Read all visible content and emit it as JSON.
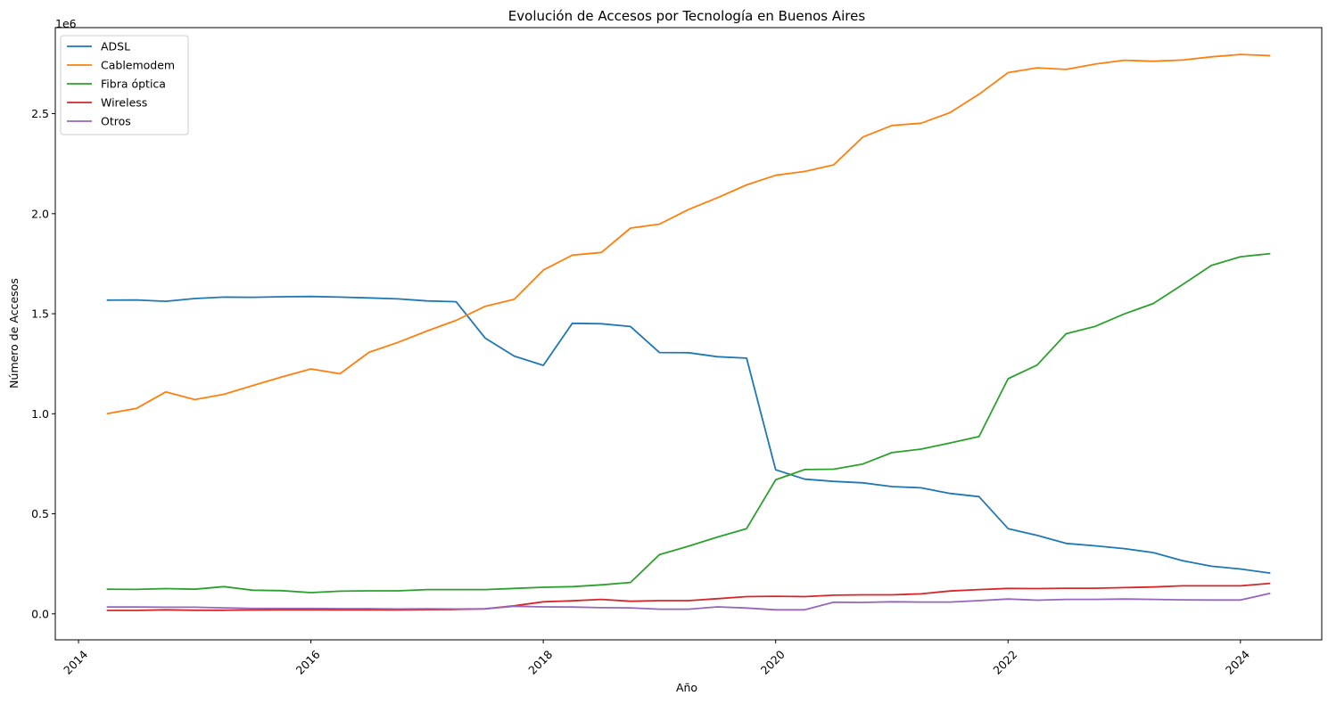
{
  "chart_data": {
    "type": "line",
    "title": "Evolución de Accesos por Tecnología en Buenos Aires",
    "xlabel": "Año",
    "ylabel": "Número de Accesos",
    "y_offset_label": "1e6",
    "xlim": [
      2013.8,
      2024.7
    ],
    "ylim": [
      -130000,
      2930000
    ],
    "x_ticks": [
      2014,
      2016,
      2018,
      2020,
      2022,
      2024
    ],
    "y_ticks": [
      0,
      500000,
      1000000,
      1500000,
      2000000,
      2500000
    ],
    "y_tick_labels": [
      "0.0",
      "0.5",
      "1.0",
      "1.5",
      "2.0",
      "2.5"
    ],
    "grid": false,
    "legend_position": "top-left",
    "x": [
      2014.25,
      2014.5,
      2014.75,
      2015,
      2015.25,
      2015.5,
      2015.75,
      2016,
      2016.25,
      2016.5,
      2016.75,
      2017,
      2017.25,
      2017.5,
      2017.75,
      2018,
      2018.25,
      2018.5,
      2018.75,
      2019,
      2019.25,
      2019.5,
      2019.75,
      2020,
      2020.25,
      2020.5,
      2020.75,
      2021,
      2021.25,
      2021.5,
      2021.75,
      2022,
      2022.25,
      2022.5,
      2022.75,
      2023,
      2023.25,
      2023.5,
      2023.75,
      2024,
      2024.25
    ],
    "series": [
      {
        "name": "ADSL",
        "color": "#1f77b4",
        "values": [
          1568000,
          1569000,
          1562000,
          1576000,
          1583000,
          1582000,
          1585000,
          1586000,
          1583000,
          1579000,
          1574000,
          1564000,
          1560000,
          1378000,
          1288000,
          1242000,
          1452000,
          1450000,
          1436000,
          1306000,
          1305000,
          1285000,
          1278000,
          720000,
          673000,
          662000,
          655000,
          636000,
          630000,
          602000,
          586000,
          426000,
          392000,
          352000,
          340000,
          326000,
          306000,
          266000,
          238000,
          224000,
          204000
        ]
      },
      {
        "name": "Cablemodem",
        "color": "#ff7f0e",
        "values": [
          1001000,
          1027000,
          1109000,
          1071000,
          1097000,
          1141000,
          1184000,
          1224000,
          1200000,
          1307000,
          1357000,
          1414000,
          1467000,
          1537000,
          1572000,
          1718000,
          1793000,
          1806000,
          1928000,
          1948000,
          2021000,
          2080000,
          2144000,
          2192000,
          2211000,
          2244000,
          2383000,
          2441000,
          2452000,
          2505000,
          2597000,
          2705000,
          2729000,
          2721000,
          2748000,
          2767000,
          2762000,
          2768000,
          2784000,
          2796000,
          2790000
        ]
      },
      {
        "name": "Fibra óptica",
        "color": "#2ca02c",
        "values": [
          123000,
          122000,
          126000,
          123000,
          136000,
          118000,
          116000,
          106000,
          113000,
          115000,
          115000,
          121000,
          121000,
          121000,
          127000,
          133000,
          136000,
          145000,
          157000,
          296000,
          338000,
          384000,
          426000,
          670000,
          721000,
          723000,
          749000,
          806000,
          823000,
          854000,
          886000,
          1175000,
          1243000,
          1400000,
          1437000,
          1499000,
          1551000,
          1645000,
          1741000,
          1785000,
          1800000
        ]
      },
      {
        "name": "Wireless",
        "color": "#d62728",
        "values": [
          17000,
          17000,
          20000,
          18000,
          18000,
          19000,
          20000,
          20000,
          20000,
          20000,
          19000,
          21000,
          22000,
          25000,
          40000,
          60000,
          65000,
          72000,
          63000,
          66000,
          66000,
          76000,
          86000,
          88000,
          86000,
          93000,
          95000,
          95000,
          100000,
          114000,
          121000,
          127000,
          126000,
          128000,
          128000,
          131000,
          134000,
          140000,
          140000,
          140000,
          152000
        ]
      },
      {
        "name": "Otros",
        "color": "#9467bd",
        "values": [
          34000,
          34000,
          33000,
          33000,
          30000,
          27000,
          27000,
          27000,
          26000,
          26000,
          24000,
          25000,
          24000,
          25000,
          38000,
          35000,
          34000,
          31000,
          30000,
          23000,
          23000,
          35000,
          29000,
          20000,
          20000,
          58000,
          57000,
          60000,
          59000,
          59000,
          66000,
          74000,
          68000,
          72000,
          72000,
          74000,
          72000,
          70000,
          69000,
          69000,
          102000
        ]
      }
    ]
  }
}
